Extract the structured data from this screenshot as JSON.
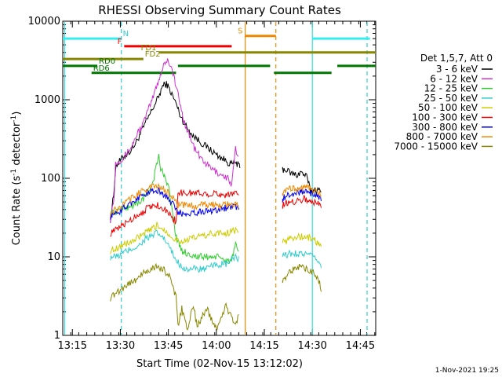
{
  "chart_data": {
    "type": "line",
    "title": "RHESSI Observing Summary Count Rates",
    "xlabel": "Start Time (02-Nov-15 13:12:02)",
    "ylabel_main": "Count Rate (s",
    "ylabel_exp1": "-1",
    "ylabel_mid": " detector",
    "ylabel_exp2": "-1",
    "ylabel_end": ")",
    "y_scale": "log",
    "ylim": [
      1,
      10000
    ],
    "xlim_min": [
      13.2,
      14.83
    ],
    "x_ticks": [
      {
        "t": 13.25,
        "label": "13:15"
      },
      {
        "t": 13.5,
        "label": "13:30"
      },
      {
        "t": 13.75,
        "label": "13:45"
      },
      {
        "t": 14.0,
        "label": "14:00"
      },
      {
        "t": 14.25,
        "label": "14:15"
      },
      {
        "t": 14.5,
        "label": "14:30"
      },
      {
        "t": 14.75,
        "label": "14:45"
      }
    ],
    "y_ticks": [
      {
        "v": 1,
        "label": "1"
      },
      {
        "v": 10,
        "label": "10"
      },
      {
        "v": 100,
        "label": "100"
      },
      {
        "v": 1000,
        "label": "1000"
      },
      {
        "v": 10000,
        "label": "10000"
      }
    ],
    "timestamp": "1-Nov-2021 19:25",
    "legend_title": "Det 1,5,7, Att 0",
    "legend_position": "right",
    "series": [
      {
        "name": "3 - 6 keV",
        "color": "#000000",
        "x": [
          13.448,
          13.465,
          13.475,
          13.5,
          13.52,
          13.55,
          13.58,
          13.6,
          13.63,
          13.66,
          13.7,
          13.72,
          13.74,
          13.76,
          13.79,
          13.81,
          13.83,
          13.85,
          13.88,
          13.91,
          13.94,
          13.97,
          14.0,
          14.03,
          14.06,
          14.08,
          14.1,
          14.12,
          14.125,
          14.345,
          14.36,
          14.39,
          14.42,
          14.44,
          14.47,
          14.49,
          14.5,
          14.52,
          14.54,
          14.55
        ],
        "y": [
          30,
          60,
          140,
          170,
          190,
          220,
          280,
          350,
          500,
          700,
          1100,
          1500,
          1600,
          1300,
          900,
          650,
          520,
          430,
          350,
          300,
          260,
          230,
          200,
          180,
          160,
          150,
          160,
          140,
          135,
          130,
          130,
          115,
          110,
          120,
          105,
          70,
          70,
          72,
          68,
          60
        ]
      },
      {
        "name": "6 - 12 keV",
        "color": "#cc33cc",
        "x": [
          13.448,
          13.468,
          13.475,
          13.5,
          13.53,
          13.56,
          13.59,
          13.62,
          13.64,
          13.66,
          13.68,
          13.7,
          13.72,
          13.73,
          13.75,
          13.77,
          13.79,
          13.81,
          13.83,
          13.86,
          13.89,
          13.92,
          13.95,
          13.98,
          14.0,
          14.03,
          14.06,
          14.08,
          14.1,
          14.11,
          14.12
        ],
        "y": [
          30,
          60,
          160,
          170,
          200,
          260,
          380,
          500,
          700,
          900,
          1300,
          1800,
          2500,
          3000,
          3200,
          2400,
          1500,
          900,
          550,
          350,
          230,
          180,
          150,
          130,
          120,
          110,
          100,
          80,
          240,
          180,
          170
        ]
      },
      {
        "name": "12 - 25 keV",
        "color": "#33cc33",
        "x": [
          13.448,
          13.48,
          13.5,
          13.53,
          13.56,
          13.59,
          13.62,
          13.65,
          13.67,
          13.68,
          13.7,
          13.71,
          13.73,
          13.75,
          13.77,
          13.78,
          13.8,
          13.82,
          13.85,
          13.9,
          13.95,
          14.0,
          14.05,
          14.08,
          14.1,
          14.12
        ],
        "y": [
          35,
          38,
          40,
          42,
          45,
          48,
          55,
          70,
          90,
          120,
          190,
          130,
          110,
          80,
          40,
          25,
          15,
          12,
          11,
          10,
          10,
          10,
          9,
          9,
          14,
          10
        ]
      },
      {
        "name": "25 - 50 keV",
        "color": "#33cccc",
        "x": [
          13.448,
          13.48,
          13.51,
          13.54,
          13.57,
          13.6,
          13.63,
          13.66,
          13.69,
          13.72,
          13.75,
          13.78,
          13.81,
          13.84,
          13.87,
          13.9,
          13.95,
          14.0,
          14.05,
          14.1,
          14.12,
          14.345,
          14.38,
          14.42,
          14.46,
          14.5,
          14.53,
          14.55
        ],
        "y": [
          10,
          10,
          11,
          12,
          13,
          14,
          17,
          18,
          20,
          18,
          14,
          10,
          8,
          7,
          7,
          7,
          7,
          8,
          8,
          10,
          9,
          10,
          11,
          11,
          11,
          10,
          9,
          7
        ]
      },
      {
        "name": "50 - 100 keV",
        "color": "#cccc00",
        "x": [
          13.448,
          13.48,
          13.51,
          13.54,
          13.57,
          13.6,
          13.63,
          13.66,
          13.69,
          13.72,
          13.75,
          13.78,
          13.81,
          13.84,
          13.87,
          13.9,
          13.95,
          14.0,
          14.05,
          14.1,
          14.12,
          14.345,
          14.38,
          14.42,
          14.46,
          14.5,
          14.53,
          14.55
        ],
        "y": [
          12,
          13,
          14,
          15,
          16,
          18,
          20,
          22,
          25,
          23,
          20,
          17,
          16,
          16,
          17,
          18,
          19,
          20,
          20,
          22,
          21,
          15,
          17,
          18,
          18,
          17,
          15,
          13
        ]
      },
      {
        "name": "100 - 300 keV",
        "color": "#ee0000",
        "x": [
          13.448,
          13.48,
          13.51,
          13.54,
          13.57,
          13.6,
          13.63,
          13.66,
          13.69,
          13.72,
          13.75,
          13.77,
          13.79,
          13.8,
          13.85,
          13.9,
          13.95,
          14.0,
          14.05,
          14.1,
          14.12,
          14.345,
          14.38,
          14.42,
          14.46,
          14.5,
          14.53,
          14.55
        ],
        "y": [
          20,
          22,
          25,
          28,
          32,
          35,
          40,
          44,
          46,
          42,
          36,
          32,
          28,
          65,
          65,
          65,
          64,
          63,
          62,
          65,
          60,
          45,
          50,
          52,
          55,
          50,
          48,
          42
        ]
      },
      {
        "name": "300 - 800 keV",
        "color": "#0000ee",
        "x": [
          13.448,
          13.48,
          13.51,
          13.54,
          13.57,
          13.6,
          13.63,
          13.66,
          13.69,
          13.72,
          13.75,
          13.77,
          13.79,
          13.8,
          13.85,
          13.9,
          13.95,
          14.0,
          14.05,
          14.1,
          14.12,
          14.345,
          14.38,
          14.42,
          14.46,
          14.5,
          14.53,
          14.55
        ],
        "y": [
          33,
          36,
          40,
          46,
          52,
          58,
          64,
          68,
          70,
          64,
          56,
          48,
          40,
          36,
          36,
          37,
          38,
          40,
          42,
          44,
          40,
          55,
          62,
          66,
          68,
          64,
          58,
          52
        ]
      },
      {
        "name": "800 - 7000 keV",
        "color": "#ee8800",
        "x": [
          13.448,
          13.48,
          13.51,
          13.54,
          13.57,
          13.6,
          13.63,
          13.66,
          13.69,
          13.72,
          13.75,
          13.77,
          13.79,
          13.8,
          13.85,
          13.9,
          13.95,
          14.0,
          14.05,
          14.1,
          14.12,
          14.345,
          14.38,
          14.42,
          14.46,
          14.5,
          14.53,
          14.55
        ],
        "y": [
          36,
          40,
          45,
          52,
          58,
          66,
          72,
          77,
          80,
          74,
          66,
          58,
          50,
          46,
          45,
          45,
          46,
          46,
          46,
          47,
          45,
          65,
          72,
          75,
          76,
          72,
          68,
          62
        ]
      },
      {
        "name": "7000 - 15000 keV",
        "color": "#888800",
        "x": [
          13.448,
          13.48,
          13.51,
          13.54,
          13.57,
          13.6,
          13.63,
          13.66,
          13.69,
          13.72,
          13.75,
          13.77,
          13.79,
          13.8,
          13.82,
          13.85,
          13.88,
          13.9,
          13.95,
          14.0,
          14.05,
          14.1,
          14.12,
          14.345,
          14.38,
          14.42,
          14.46,
          14.5,
          14.53,
          14.55
        ],
        "y": [
          3,
          3.5,
          4,
          4.5,
          5,
          5.5,
          6.5,
          7,
          7.5,
          7,
          6,
          4.5,
          3,
          1.3,
          2.2,
          1.2,
          2.4,
          1.3,
          2.2,
          1.2,
          2.4,
          1.3,
          2.2,
          5,
          6.5,
          7.5,
          7,
          6.5,
          5.5,
          3.5
        ]
      }
    ],
    "vertical_markers": [
      {
        "t": 13.21,
        "color": "#33dddd",
        "style": "solid"
      },
      {
        "t": 13.505,
        "color": "#33cccc",
        "style": "dashed"
      },
      {
        "t": 14.15,
        "color": "#ee8800",
        "style": "solid"
      },
      {
        "t": 14.31,
        "color": "#ee8800",
        "style": "dashed"
      },
      {
        "t": 14.5,
        "color": "#33dddd",
        "style": "solid"
      },
      {
        "t": 14.785,
        "color": "#33cccc",
        "style": "dashed"
      }
    ],
    "flag_bars": [
      {
        "label": "N",
        "color": "#33eeee",
        "label_color": "#33cccc",
        "label_side": "end",
        "label_t": 13.505,
        "segments": [
          [
            13.2,
            13.505
          ],
          [
            14.5,
            14.8
          ]
        ],
        "level": 6000
      },
      {
        "label": "S",
        "color": "#ee8800",
        "label_color": "#ee8800",
        "label_side": "start",
        "label_t": 14.15,
        "segments": [
          [
            14.15,
            14.31
          ]
        ],
        "level": 6500
      },
      {
        "label": "F",
        "color": "#ee0000",
        "label_color": "#ee0000",
        "label_side": "start",
        "label_t": 13.52,
        "segments": [
          [
            13.52,
            14.08
          ]
        ],
        "level": 4800
      },
      {
        "label": "FD1",
        "color": "#888800",
        "label_color": "#888800",
        "label_side": "start",
        "label_t": 13.7,
        "segments": [
          [
            13.7,
            14.83
          ]
        ],
        "level": 4000
      },
      {
        "label": "FD2",
        "color": "#888800",
        "label_color": "#888800",
        "label_side": "end",
        "label_t": 13.62,
        "segments": [
          [
            13.2,
            13.62
          ]
        ],
        "level": 3300
      },
      {
        "label": "RD0",
        "color": "#007700",
        "label_color": "#007700",
        "label_side": "end",
        "label_t": 13.38,
        "segments": [
          [
            13.2,
            13.38
          ],
          [
            13.8,
            14.28
          ],
          [
            14.63,
            14.83
          ]
        ],
        "level": 2700
      },
      {
        "label": "RD6",
        "color": "#007700",
        "label_color": "#007700",
        "label_side": "end",
        "label_t": 13.35,
        "segments": [
          [
            13.35,
            13.79
          ],
          [
            14.3,
            14.6
          ]
        ],
        "level": 2200
      }
    ]
  }
}
